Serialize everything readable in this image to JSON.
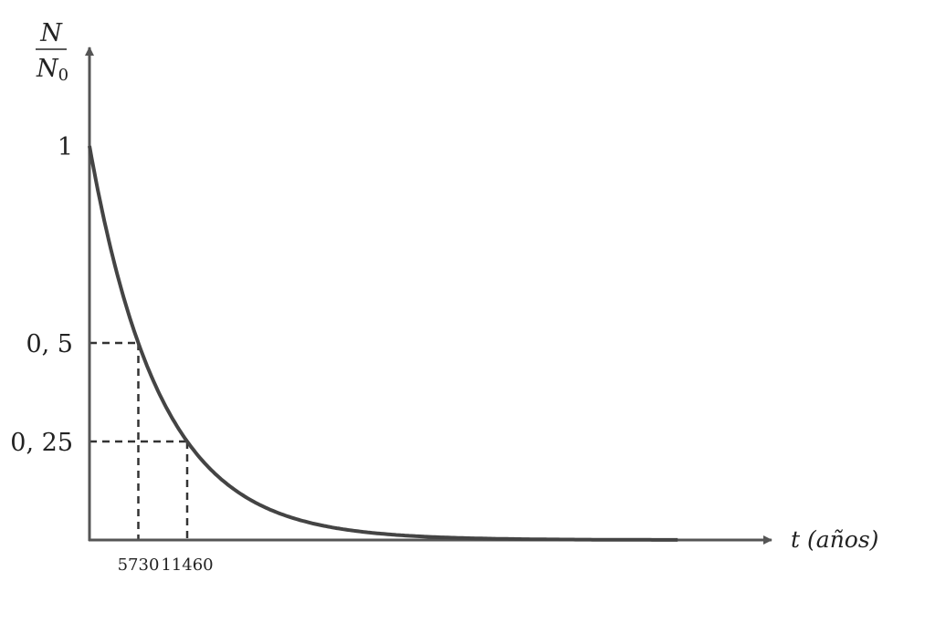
{
  "chart_data": {
    "type": "line",
    "title": "",
    "xlabel": "t (años)",
    "xlabel_var": "t",
    "xlabel_unit": "(años)",
    "ylabel_num": "N",
    "ylabel_den": "N",
    "ylabel_den_sub": "0",
    "y_ticks": [
      {
        "value": 1,
        "label": "1"
      },
      {
        "value": 0.5,
        "label": "0, 5"
      },
      {
        "value": 0.25,
        "label": "0, 25"
      }
    ],
    "x_ticks": [
      {
        "value": 5730,
        "label": "5730"
      },
      {
        "value": 11460,
        "label": "11460"
      }
    ],
    "function": "N/N0 = 0.5^(t/5730)",
    "half_life": 5730,
    "curve_x_range": [
      0,
      69000
    ],
    "xlim": [
      0,
      80000
    ],
    "ylim": [
      0,
      1.25
    ],
    "guides": [
      {
        "x": 5730,
        "y": 0.5
      },
      {
        "x": 11460,
        "y": 0.25
      }
    ],
    "grid": false,
    "colors": {
      "curve": "#444444",
      "axis": "#555555",
      "guide": "#333333"
    }
  }
}
